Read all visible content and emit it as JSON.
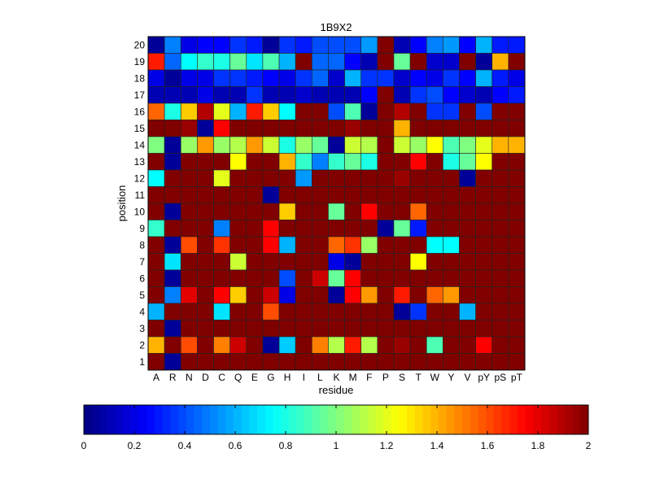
{
  "chart_data": {
    "type": "heatmap",
    "title": "1B9X2",
    "xlabel": "residue",
    "ylabel": "position",
    "x_labels": [
      "A",
      "R",
      "N",
      "D",
      "C",
      "Q",
      "E",
      "G",
      "H",
      "I",
      "L",
      "K",
      "M",
      "F",
      "P",
      "S",
      "T",
      "W",
      "Y",
      "V",
      "pY",
      "pS",
      "pT"
    ],
    "y_labels_top_to_bottom": [
      "20",
      "19",
      "18",
      "17",
      "16",
      "15",
      "14",
      "13",
      "12",
      "11",
      "10",
      "9",
      "8",
      "7",
      "6",
      "5",
      "4",
      "3",
      "2",
      "1"
    ],
    "colormap": "jet",
    "clim": [
      0,
      2
    ],
    "colorbar_ticks": [
      "0",
      "0.2",
      "0.4",
      "0.6",
      "0.8",
      "1",
      "1.2",
      "1.4",
      "1.6",
      "1.8",
      "2"
    ],
    "colorbar_placement": "bottom",
    "z": [
      [
        0.05,
        0.5,
        0.2,
        0.25,
        0.25,
        0.35,
        0.3,
        0.05,
        0.35,
        0.3,
        0.4,
        0.4,
        0.4,
        0.55,
        2,
        0.1,
        0.25,
        0.5,
        0.55,
        0.25,
        0.6,
        0.3,
        0.3
      ],
      [
        1.7,
        0.45,
        0.75,
        0.85,
        0.8,
        0.95,
        0.7,
        0.9,
        0.6,
        2,
        0.45,
        0.45,
        0.25,
        0.1,
        2,
        0.95,
        2,
        0.15,
        0.15,
        2,
        0.05,
        1.4,
        2
      ],
      [
        0.2,
        0.05,
        0.2,
        0.2,
        0.35,
        0.35,
        0.3,
        0.25,
        0.2,
        0.35,
        0.45,
        0.15,
        0.6,
        0.35,
        0.35,
        0.15,
        0.25,
        0.2,
        0.35,
        0.25,
        0.6,
        0.3,
        0.2
      ],
      [
        0.1,
        0.1,
        0.1,
        0.2,
        0.1,
        0.1,
        0.35,
        0.1,
        0.1,
        0.15,
        0.1,
        0.1,
        0.1,
        0.25,
        2,
        0.1,
        0.35,
        0.4,
        0.25,
        0.15,
        0.1,
        0.25,
        0.3
      ],
      [
        1.55,
        0.8,
        1.35,
        1.9,
        1.2,
        0.6,
        1.7,
        1.35,
        0.75,
        2,
        2,
        0.4,
        0.9,
        0.05,
        2,
        1.9,
        2,
        0.35,
        0.35,
        2,
        0.4,
        2,
        2
      ],
      [
        2,
        2,
        1.95,
        0.05,
        1.75,
        2,
        2,
        2,
        2,
        2,
        2,
        2,
        1.95,
        2,
        2,
        1.4,
        2,
        2,
        2,
        2,
        2,
        2,
        2
      ],
      [
        1.0,
        0.05,
        1.05,
        1.45,
        1.05,
        1.1,
        1.45,
        1.15,
        0.8,
        1.05,
        0.95,
        0.05,
        1.15,
        1.1,
        2,
        1.15,
        1.05,
        1.25,
        0.9,
        1.0,
        1.2,
        1.4,
        1.4
      ],
      [
        2,
        0.05,
        2,
        2,
        2,
        1.25,
        2,
        2,
        1.4,
        0.85,
        0.5,
        0.85,
        0.95,
        0.8,
        2,
        2,
        1.75,
        2,
        0.8,
        0.95,
        1.25,
        2,
        2
      ],
      [
        0.75,
        2,
        2,
        2,
        1.2,
        2,
        2,
        2,
        2,
        0.55,
        2,
        2,
        2,
        2,
        2,
        1.95,
        2,
        2,
        2,
        0.05,
        2,
        2,
        2
      ],
      [
        2,
        2,
        2,
        2,
        2,
        2,
        2,
        0.05,
        2,
        2,
        2,
        2,
        2,
        2,
        2,
        2,
        2,
        2,
        2,
        2,
        2,
        2,
        2
      ],
      [
        2,
        0.05,
        2,
        2,
        2,
        2,
        2,
        2,
        1.35,
        2,
        2,
        0.95,
        2,
        1.75,
        2,
        2,
        1.55,
        2,
        2,
        2,
        2,
        2,
        2
      ],
      [
        0.85,
        2,
        2,
        2,
        0.5,
        2,
        2,
        1.75,
        2,
        2,
        2,
        2,
        2,
        2,
        0.05,
        0.95,
        0.3,
        2,
        2,
        2,
        2,
        2,
        2
      ],
      [
        2,
        0.05,
        1.6,
        2,
        1.65,
        2,
        2,
        1.75,
        0.6,
        2,
        2,
        1.55,
        1.65,
        1.05,
        2,
        2,
        2,
        0.75,
        0.75,
        2,
        2,
        2,
        2
      ],
      [
        2,
        0.7,
        2,
        2,
        2,
        1.15,
        2,
        2,
        2,
        2,
        2,
        0.2,
        0.05,
        2,
        2,
        2,
        1.25,
        2,
        2,
        2,
        2,
        2,
        2
      ],
      [
        2,
        0.05,
        2,
        2,
        2,
        2,
        2,
        2,
        0.4,
        2,
        1.85,
        0.95,
        1.75,
        2,
        2,
        2,
        2,
        2,
        2,
        2,
        2,
        2,
        2
      ],
      [
        2,
        0.5,
        1.8,
        2,
        1.75,
        1.35,
        2,
        1.85,
        0.2,
        2,
        2,
        0.05,
        1.75,
        1.45,
        2,
        1.7,
        2,
        1.55,
        1.45,
        2,
        2,
        2,
        2
      ],
      [
        0.6,
        2,
        2,
        2,
        0.7,
        2,
        2,
        1.6,
        2,
        2,
        2,
        2,
        2,
        2,
        2,
        0.05,
        0.35,
        2,
        2,
        0.6,
        2,
        2,
        2
      ],
      [
        2,
        0.05,
        2,
        2,
        2,
        2,
        2,
        2,
        2,
        2,
        2,
        2,
        2,
        2,
        2,
        2,
        2,
        2,
        2,
        2,
        2,
        2,
        2
      ],
      [
        1.4,
        2,
        1.6,
        2,
        1.5,
        1.85,
        2,
        0.05,
        0.65,
        2,
        1.5,
        1.1,
        1.7,
        1.1,
        2,
        1.95,
        2,
        0.9,
        2,
        2,
        1.75,
        2,
        2
      ],
      [
        2,
        0.05,
        2,
        2,
        2,
        2,
        2,
        2,
        2,
        2,
        2,
        2,
        2,
        2,
        2,
        2,
        2,
        2,
        2,
        2,
        2,
        2,
        2
      ]
    ]
  }
}
